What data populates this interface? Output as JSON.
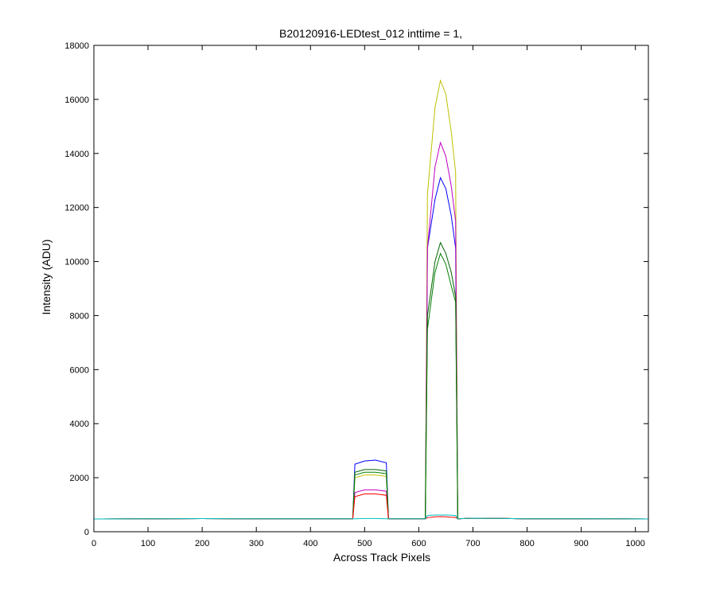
{
  "chart_data": {
    "type": "line",
    "title": "B20120916-LEDtest_012 inttime = 1,",
    "x_label": "Across Track Pixels",
    "y_label": "Intensity (ADU)",
    "x": [
      0,
      100,
      200,
      300,
      400,
      478,
      482,
      500,
      520,
      540,
      544,
      600,
      612,
      616,
      630,
      640,
      650,
      660,
      668,
      672,
      700,
      800,
      900,
      1024
    ],
    "series": [
      {
        "color": "#0000ff",
        "values": [
          470,
          480,
          485,
          480,
          480,
          480,
          2500,
          2620,
          2650,
          2550,
          480,
          480,
          480,
          10500,
          12300,
          13100,
          12700,
          11700,
          10500,
          480,
          500,
          480,
          480,
          470
        ]
      },
      {
        "color": "#bfbf00",
        "values": [
          470,
          480,
          485,
          480,
          480,
          480,
          2000,
          2100,
          2100,
          2050,
          480,
          480,
          480,
          12500,
          15700,
          16700,
          16200,
          14800,
          13300,
          480,
          500,
          480,
          480,
          470
        ]
      },
      {
        "color": "#bf00bf",
        "values": [
          470,
          480,
          485,
          480,
          480,
          480,
          1450,
          1550,
          1550,
          1500,
          480,
          480,
          480,
          10500,
          13500,
          14400,
          13900,
          12800,
          11500,
          480,
          500,
          480,
          480,
          470
        ]
      },
      {
        "color": "#006400",
        "values": [
          470,
          480,
          485,
          480,
          480,
          480,
          2200,
          2300,
          2300,
          2250,
          480,
          480,
          480,
          8000,
          10000,
          10700,
          10300,
          9600,
          8700,
          480,
          500,
          480,
          480,
          470
        ]
      },
      {
        "color": "#008000",
        "values": [
          470,
          480,
          485,
          480,
          480,
          480,
          2100,
          2200,
          2200,
          2150,
          480,
          480,
          480,
          7500,
          9600,
          10300,
          9900,
          9100,
          8500,
          480,
          500,
          480,
          480,
          470
        ]
      },
      {
        "color": "#ff0000",
        "values": [
          470,
          480,
          485,
          480,
          480,
          480,
          1300,
          1400,
          1400,
          1350,
          480,
          480,
          480,
          520,
          550,
          560,
          550,
          540,
          530,
          480,
          500,
          480,
          480,
          470
        ]
      },
      {
        "color": "#00bfbf",
        "values": [
          470,
          480,
          485,
          480,
          480,
          480,
          480,
          490,
          490,
          480,
          480,
          480,
          480,
          600,
          620,
          620,
          620,
          610,
          600,
          480,
          500,
          480,
          480,
          470
        ]
      }
    ],
    "xlim": [
      0,
      1024
    ],
    "xticks": [
      0,
      100,
      200,
      300,
      400,
      500,
      600,
      700,
      800,
      900,
      1000
    ],
    "ylim": [
      0,
      18000
    ],
    "yticks": [
      0,
      2000,
      4000,
      6000,
      8000,
      10000,
      12000,
      14000,
      16000,
      18000
    ],
    "grid": false
  }
}
